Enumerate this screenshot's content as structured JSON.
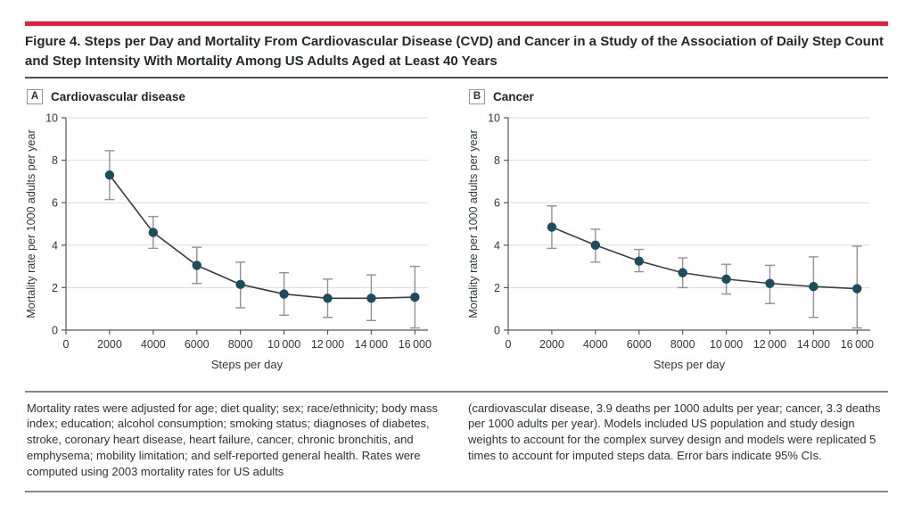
{
  "header": {
    "title_lines": [
      "Figure 4. Steps per Day and Mortality From Cardiovascular Disease (CVD) and Cancer in a Study of the Association of Daily Step Count",
      "and Step Intensity With Mortality Among US Adults Aged at Least 40 Years"
    ]
  },
  "colors": {
    "accent_red": "#e31b3e",
    "marker": "#1b4d5e",
    "trend_line": "#3a3d40",
    "error_bar": "#8f9194",
    "axis": "#54575b",
    "grid": "#dadbdc",
    "tick_text": "#33363a"
  },
  "chart_data": [
    {
      "type": "line",
      "panel": "A",
      "panel_label": "Cardiovascular disease",
      "xlabel": "Steps per day",
      "ylabel": "Mortality rate per 1000 adults per year",
      "x": [
        2000,
        4000,
        6000,
        8000,
        10000,
        12000,
        14000,
        16000
      ],
      "y": [
        7.3,
        4.6,
        3.05,
        2.15,
        1.7,
        1.5,
        1.5,
        1.55
      ],
      "ci_low": [
        6.15,
        3.85,
        2.2,
        1.05,
        0.7,
        0.6,
        0.45,
        0.1
      ],
      "ci_high": [
        8.45,
        5.35,
        3.9,
        3.2,
        2.7,
        2.4,
        2.6,
        3.0
      ],
      "xlim": [
        0,
        16600
      ],
      "ylim": [
        0,
        10
      ],
      "yticks": [
        0,
        2,
        4,
        6,
        8,
        10
      ],
      "xticks": [
        0,
        2000,
        4000,
        6000,
        8000,
        10000,
        12000,
        14000,
        16000
      ],
      "xtick_labels": [
        "0",
        "2000",
        "4000",
        "6000",
        "8000",
        "10 000",
        "12 000",
        "14 000",
        "16 000"
      ],
      "grid": "horizontal lines at yticks",
      "legend": "none",
      "error_bars": "95% CI"
    },
    {
      "type": "line",
      "panel": "B",
      "panel_label": "Cancer",
      "xlabel": "Steps per day",
      "ylabel": "Mortality rate per 1000 adults per year",
      "x": [
        2000,
        4000,
        6000,
        8000,
        10000,
        12000,
        14000,
        16000
      ],
      "y": [
        4.85,
        4.0,
        3.25,
        2.7,
        2.4,
        2.2,
        2.05,
        1.95
      ],
      "ci_low": [
        3.85,
        3.2,
        2.75,
        2.0,
        1.7,
        1.25,
        0.6,
        0.1
      ],
      "ci_high": [
        5.85,
        4.75,
        3.8,
        3.4,
        3.1,
        3.05,
        3.45,
        3.95
      ],
      "xlim": [
        0,
        16600
      ],
      "ylim": [
        0,
        10
      ],
      "yticks": [
        0,
        2,
        4,
        6,
        8,
        10
      ],
      "xticks": [
        0,
        2000,
        4000,
        6000,
        8000,
        10000,
        12000,
        14000,
        16000
      ],
      "xtick_labels": [
        "0",
        "2000",
        "4000",
        "6000",
        "8000",
        "10 000",
        "12 000",
        "14 000",
        "16 000"
      ],
      "grid": "horizontal lines at yticks",
      "legend": "none",
      "error_bars": "95% CI"
    }
  ],
  "footnotes": {
    "left": "Mortality rates were adjusted for age; diet quality; sex; race/ethnicity; body mass index; education; alcohol consumption; smoking status; diagnoses of diabetes, stroke, coronary heart disease, heart failure, cancer, chronic bronchitis, and emphysema; mobility limitation; and self-reported general health. Rates were computed using 2003 mortality rates for US adults",
    "right": "(cardiovascular disease, 3.9 deaths per 1000 adults per year; cancer, 3.3 deaths per 1000 adults per year). Models included US population and study design weights to account for the complex survey design and models were replicated 5 times to account for imputed steps data. Error bars indicate 95% CIs."
  }
}
